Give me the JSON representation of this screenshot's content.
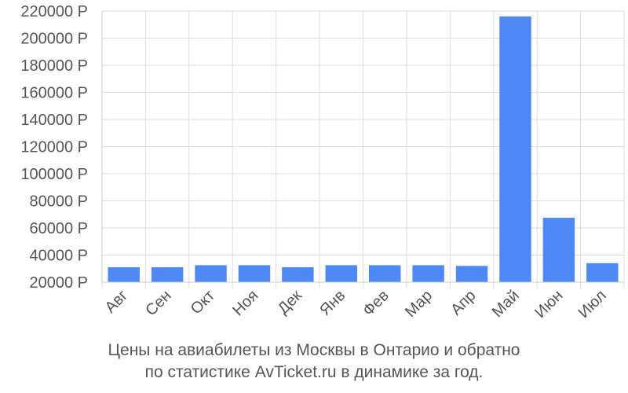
{
  "chart_data": {
    "type": "bar",
    "categories": [
      "Авг",
      "Сен",
      "Окт",
      "Ноя",
      "Дек",
      "Янв",
      "Фев",
      "Мар",
      "Апр",
      "Май",
      "Июн",
      "Июл"
    ],
    "values": [
      31000,
      31000,
      32500,
      32500,
      31000,
      32500,
      32500,
      32500,
      32000,
      216000,
      67500,
      34000
    ],
    "y_ticks": [
      "20000 Р",
      "40000 Р",
      "60000 Р",
      "80000 Р",
      "100000 Р",
      "120000 Р",
      "140000 Р",
      "160000 Р",
      "180000 Р",
      "200000 Р",
      "220000 Р"
    ],
    "ylim": [
      20000,
      220000
    ],
    "grid": true,
    "bar_color": "#4e89f5",
    "caption_lines": [
      "Цены на авиабилеты из Москвы в Онтарио и обратно",
      "по статистике AvTicket.ru в динамике за год."
    ]
  }
}
